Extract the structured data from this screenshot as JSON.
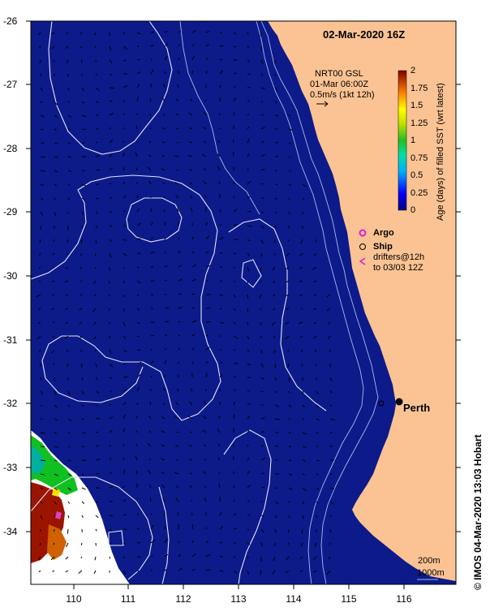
{
  "title": "02-Mar-2020 16Z",
  "product": {
    "line1": "NRT00 GSL",
    "line2": "01-Mar 06:00Z",
    "line3": "0.5m/s (1kt 12h)"
  },
  "colorbar": {
    "label": "Age (days) of filled SST (wrt latest)",
    "ticks": [
      "2",
      "1.75",
      "1.5",
      "1.25",
      "1",
      "0.75",
      "0.5",
      "0.25",
      "0"
    ]
  },
  "legend": {
    "argo": "Argo",
    "ship": "Ship",
    "drifters_line1": "drifters@12h",
    "drifters_line2": "to 03/03 12Z"
  },
  "city": "Perth",
  "credit": "© IMOS 04-Mar-2020 13:03 Hobart",
  "contours_note": {
    "line1": "200m",
    "line2": "1000m"
  },
  "axes": {
    "lat_labels": [
      "-26",
      "-27",
      "-28",
      "-29",
      "-30",
      "-31",
      "-32",
      "-33",
      "-34"
    ],
    "lon_labels": [
      "110",
      "111",
      "112",
      "113",
      "114",
      "115",
      "116"
    ]
  },
  "colors": {
    "ocean": "#0d1a8a",
    "land": "#fbc393",
    "contour": "#d8ddf0",
    "argo": "#e01cd8",
    "drifter": "#e01cd8"
  }
}
